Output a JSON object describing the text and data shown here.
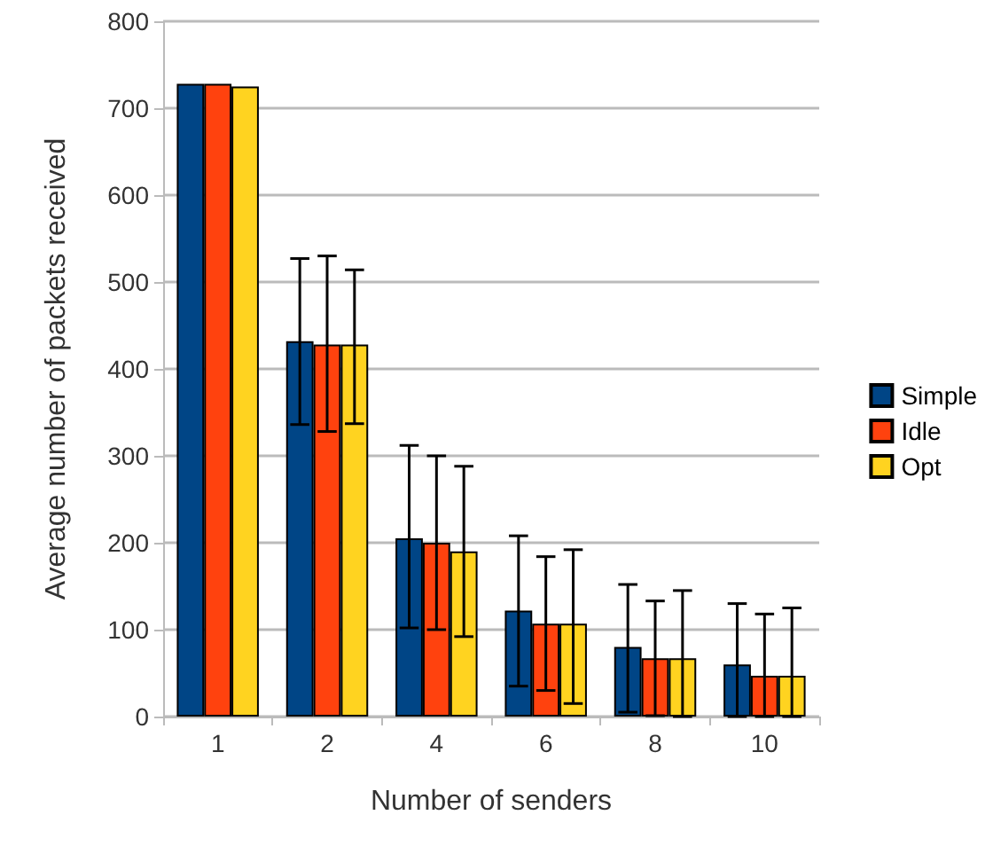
{
  "chart_data": {
    "type": "bar",
    "xlabel": "Number of senders",
    "ylabel": "Average number of packets received",
    "categories": [
      "1",
      "2",
      "4",
      "6",
      "8",
      "10"
    ],
    "series": [
      {
        "name": "Simple",
        "color": "#004586",
        "values": [
          728,
          432,
          205,
          122,
          80,
          60
        ],
        "errors": [
          null,
          [
            336,
            527
          ],
          [
            102,
            312
          ],
          [
            35,
            208
          ],
          [
            5,
            152
          ],
          [
            0,
            130
          ]
        ]
      },
      {
        "name": "Idle",
        "color": "#ff420e",
        "values": [
          728,
          428,
          200,
          107,
          67,
          47
        ],
        "errors": [
          null,
          [
            328,
            530
          ],
          [
            100,
            300
          ],
          [
            30,
            184
          ],
          [
            1,
            133
          ],
          [
            0,
            118
          ]
        ]
      },
      {
        "name": "Opt",
        "color": "#ffd320",
        "values": [
          725,
          428,
          190,
          107,
          67,
          47
        ],
        "errors": [
          null,
          [
            337,
            514
          ],
          [
            92,
            288
          ],
          [
            15,
            192
          ],
          [
            0,
            145
          ],
          [
            0,
            125
          ]
        ]
      }
    ],
    "ylim": [
      0,
      800
    ],
    "yticks": [
      0,
      100,
      200,
      300,
      400,
      500,
      600,
      700,
      800
    ],
    "grid": "y",
    "legend": "right"
  }
}
